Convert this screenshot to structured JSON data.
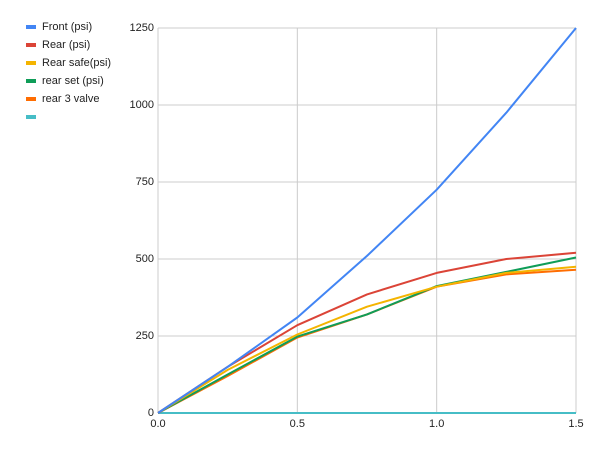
{
  "chart_data": {
    "type": "line",
    "x": [
      0,
      0.25,
      0.5,
      0.75,
      1.0,
      1.25,
      1.5
    ],
    "series": [
      {
        "name": "Front (psi)",
        "color": "#4285f4",
        "values": [
          0,
          150,
          310,
          510,
          725,
          975,
          1250
        ]
      },
      {
        "name": "Rear (psi)",
        "color": "#db4437",
        "values": [
          0,
          150,
          285,
          385,
          455,
          500,
          520
        ]
      },
      {
        "name": "Rear safe(psi)",
        "color": "#f4b400",
        "values": [
          0,
          140,
          255,
          345,
          410,
          455,
          475
        ]
      },
      {
        "name": "rear set (psi)",
        "color": "#0f9d58",
        "values": [
          0,
          125,
          248,
          320,
          412,
          458,
          505
        ]
      },
      {
        "name": "rear 3 valve",
        "color": "#ff6d01",
        "values": [
          0,
          120,
          245,
          320,
          410,
          450,
          465
        ]
      },
      {
        "name": null,
        "color": "#46bdc6",
        "values": [
          0,
          0,
          0,
          0,
          0,
          0,
          0
        ]
      }
    ],
    "xlim": [
      0,
      1.5
    ],
    "xticks": [
      {
        "value": 0,
        "label": "0.0"
      },
      0.5,
      {
        "value": 1.0,
        "label": "1.0"
      },
      1.5
    ],
    "ylim": [
      0,
      1250
    ],
    "yticks": [
      0,
      250,
      500,
      750,
      1000,
      1250
    ],
    "grid": true,
    "legend": "left"
  }
}
